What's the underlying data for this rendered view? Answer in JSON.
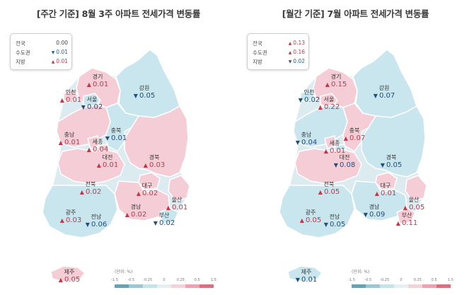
{
  "colors": {
    "up_text": "#c0394b",
    "down_text": "#1f4f80",
    "fill_up": "#f4cdd6",
    "fill_down": "#c9e5ee",
    "fill_neutral": "#dcebf0",
    "legend": [
      "#6b9fb3",
      "#9cc6d4",
      "#c6e2ea",
      "#e7eef0",
      "#f3d3da",
      "#eaa3b1",
      "#d9707f"
    ]
  },
  "icons": {
    "up": "▲",
    "down": "▼"
  },
  "panels": [
    {
      "title": "[주간 기준] 8월 3주 아파트 전세가격 변동률",
      "summary": [
        {
          "label": "전국",
          "value": "0.00",
          "dir": "none"
        },
        {
          "label": "수도권",
          "value": "0.01",
          "dir": "down"
        },
        {
          "label": "지방",
          "value": "0.01",
          "dir": "up"
        }
      ],
      "regions": [
        {
          "name": "경기",
          "value": "0.01",
          "dir": "up"
        },
        {
          "name": "인천",
          "value": "0.01",
          "dir": "up"
        },
        {
          "name": "서울",
          "value": "0.02",
          "dir": "down"
        },
        {
          "name": "강원",
          "value": "0.05",
          "dir": "down"
        },
        {
          "name": "충북",
          "value": "0.01",
          "dir": "down"
        },
        {
          "name": "충남",
          "value": "0.01",
          "dir": "up"
        },
        {
          "name": "세종",
          "value": "0.04",
          "dir": "up"
        },
        {
          "name": "대전",
          "value": "0.01",
          "dir": "up"
        },
        {
          "name": "경북",
          "value": "0.03",
          "dir": "up"
        },
        {
          "name": "전북",
          "value": "0.02",
          "dir": "up"
        },
        {
          "name": "대구",
          "value": "0.02",
          "dir": "up"
        },
        {
          "name": "울산",
          "value": "0.01",
          "dir": "up"
        },
        {
          "name": "경남",
          "value": "0.02",
          "dir": "up"
        },
        {
          "name": "광주",
          "value": "0.03",
          "dir": "up"
        },
        {
          "name": "전남",
          "value": "0.06",
          "dir": "down"
        },
        {
          "name": "부산",
          "value": "0.02",
          "dir": "down"
        },
        {
          "name": "제주",
          "value": "0.05",
          "dir": "up"
        }
      ],
      "legend": {
        "unit": "(단위: %)",
        "ticks": [
          "-1.5",
          "-0.5",
          "-0.25",
          "0",
          "0.25",
          "0.5",
          "1.5"
        ]
      }
    },
    {
      "title": "[월간 기준] 7월 아파트 전세가격 변동률",
      "summary": [
        {
          "label": "전국",
          "value": "0.13",
          "dir": "up"
        },
        {
          "label": "수도권",
          "value": "0.16",
          "dir": "up"
        },
        {
          "label": "지방",
          "value": "0.02",
          "dir": "down"
        }
      ],
      "regions": [
        {
          "name": "경기",
          "value": "0.15",
          "dir": "up"
        },
        {
          "name": "인천",
          "value": "0.02",
          "dir": "down"
        },
        {
          "name": "서울",
          "value": "0.22",
          "dir": "up"
        },
        {
          "name": "강원",
          "value": "0.07",
          "dir": "down"
        },
        {
          "name": "충북",
          "value": "0.07",
          "dir": "up"
        },
        {
          "name": "충남",
          "value": "0.04",
          "dir": "down"
        },
        {
          "name": "세종",
          "value": "0.01",
          "dir": "up"
        },
        {
          "name": "대전",
          "value": "0.08",
          "dir": "down"
        },
        {
          "name": "경북",
          "value": "0.05",
          "dir": "down"
        },
        {
          "name": "전북",
          "value": "0.05",
          "dir": "up"
        },
        {
          "name": "대구",
          "value": "0.01",
          "dir": "up"
        },
        {
          "name": "울산",
          "value": "0.05",
          "dir": "up"
        },
        {
          "name": "경남",
          "value": "0.09",
          "dir": "down"
        },
        {
          "name": "광주",
          "value": "0.05",
          "dir": "up"
        },
        {
          "name": "전남",
          "value": "0.05",
          "dir": "down"
        },
        {
          "name": "부산",
          "value": "0.11",
          "dir": "up"
        },
        {
          "name": "제주",
          "value": "0.01",
          "dir": "down"
        }
      ],
      "legend": {
        "unit": "(단위: %)",
        "ticks": [
          "-1.5",
          "-0.5",
          "-0.25",
          "0",
          "0.25",
          "0.5",
          "1.5"
        ]
      }
    }
  ]
}
